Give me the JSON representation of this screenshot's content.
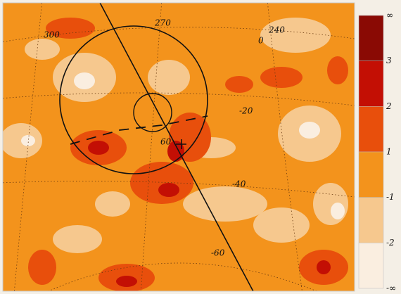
{
  "map": {
    "coordinate_labels": [
      "300",
      "270",
      "240",
      "0",
      "-20",
      "-40",
      "-60",
      "60"
    ]
  },
  "colorbar": {
    "labels": [
      "∞",
      "3",
      "2",
      "1",
      "-1",
      "-2",
      "-∞"
    ],
    "colors": [
      "#8a0a04",
      "#c30f04",
      "#e84f0c",
      "#f3931c",
      "#f6c88e",
      "#faeee0"
    ]
  }
}
